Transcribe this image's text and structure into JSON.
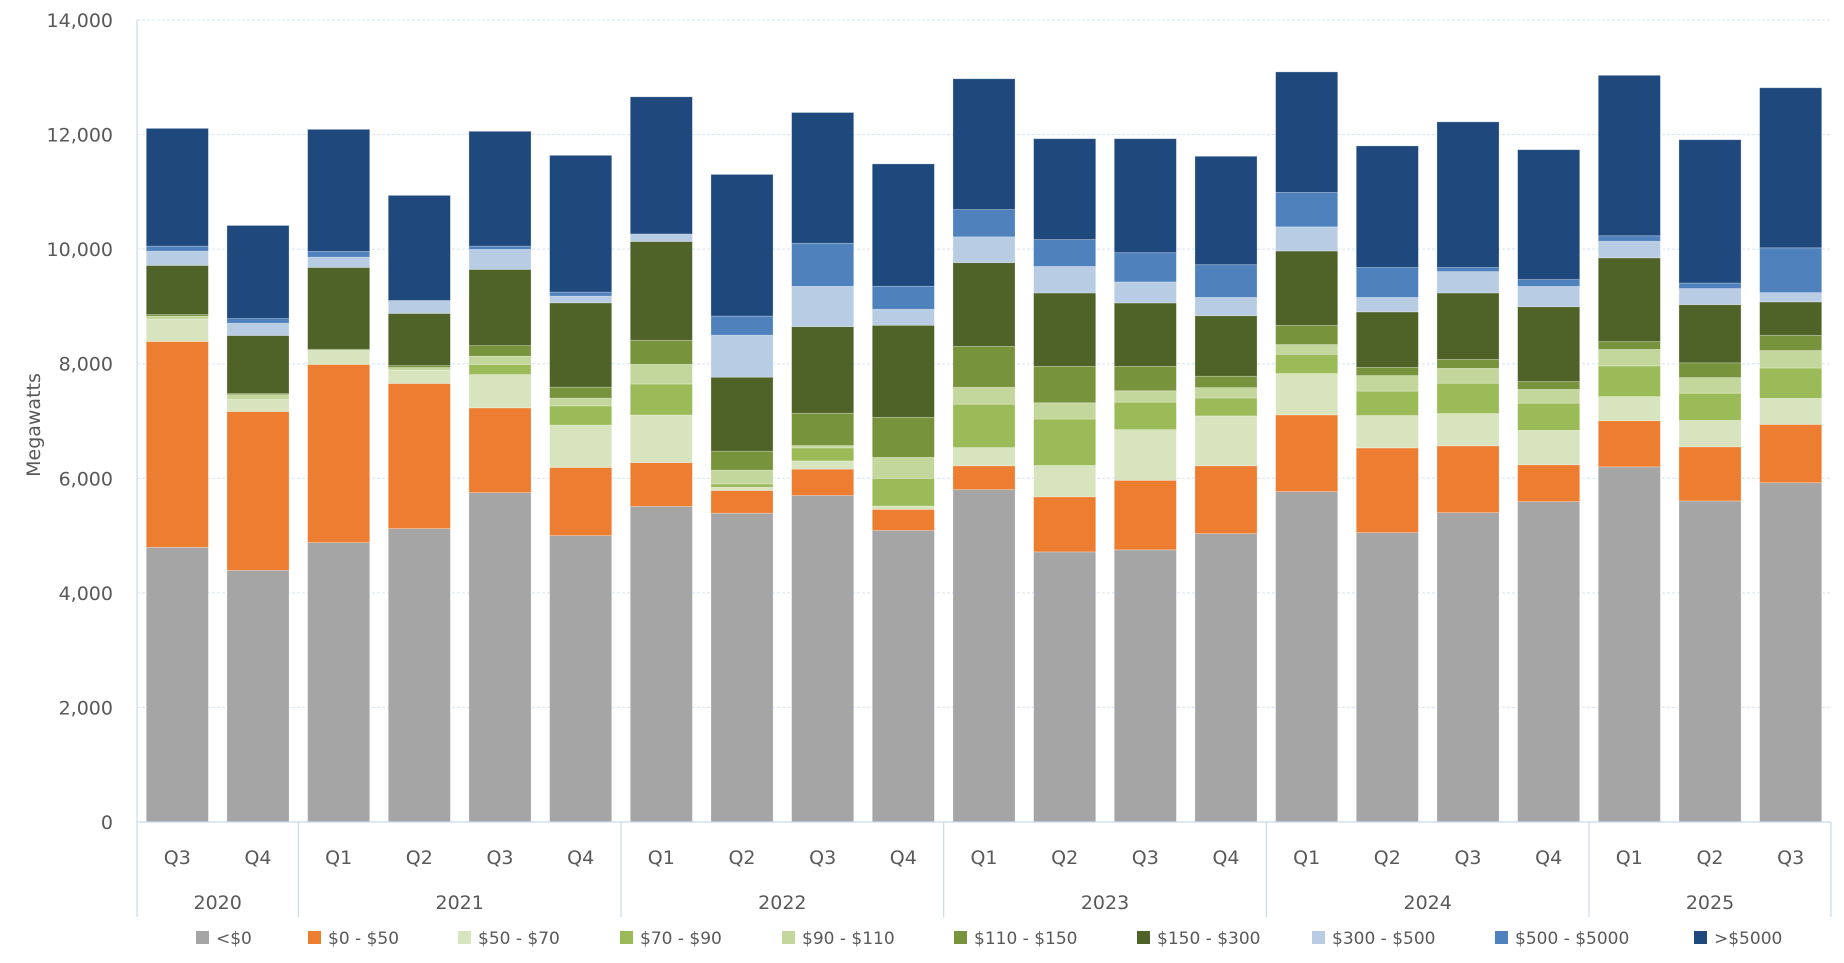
{
  "chart_data": {
    "type": "bar",
    "stacked": true,
    "title": "",
    "xlabel": "",
    "ylabel": "Megawatts",
    "ylim": [
      0,
      14000
    ],
    "yticks": [
      0,
      2000,
      4000,
      6000,
      8000,
      10000,
      12000,
      14000
    ],
    "ytick_labels": [
      "0",
      "2,000",
      "4,000",
      "6,000",
      "8,000",
      "10,000",
      "12,000",
      "14,000"
    ],
    "grid": true,
    "legend_position": "bottom",
    "categories": [
      "Q3",
      "Q4",
      "Q1",
      "Q2",
      "Q3",
      "Q4",
      "Q1",
      "Q2",
      "Q3",
      "Q4",
      "Q1",
      "Q2",
      "Q3",
      "Q4",
      "Q1",
      "Q2",
      "Q3",
      "Q4",
      "Q1",
      "Q2",
      "Q3"
    ],
    "category_groups": [
      {
        "label": "2020",
        "count": 2
      },
      {
        "label": "2021",
        "count": 4
      },
      {
        "label": "2022",
        "count": 4
      },
      {
        "label": "2023",
        "count": 4
      },
      {
        "label": "2024",
        "count": 4
      },
      {
        "label": "2025",
        "count": 3
      }
    ],
    "series": [
      {
        "name": "<$0",
        "color": "#A5A5A5",
        "values": [
          4795,
          4393,
          4877,
          5121,
          5750,
          5000,
          5510,
          5390,
          5700,
          5090,
          5803,
          4715,
          4751,
          5034,
          5767,
          5052,
          5400,
          5593,
          6200,
          5605,
          5923
        ]
      },
      {
        "name": "$0 - $50",
        "color": "#ED7D31",
        "values": [
          3592,
          2772,
          3109,
          2533,
          1479,
          1188,
          763,
          396,
          460,
          367,
          415,
          962,
          1214,
          1184,
          1340,
          1478,
          1167,
          643,
          805,
          944,
          1016
        ]
      },
      {
        "name": "$50 - $70",
        "color": "#D7E4BD",
        "values": [
          390,
          209,
          250,
          233,
          582,
          739,
          832,
          58,
          143,
          58,
          318,
          547,
          884,
          871,
          722,
          565,
          564,
          601,
          421,
          462,
          457
        ]
      },
      {
        "name": "$70 - $90",
        "color": "#9BBB59",
        "values": [
          0,
          0,
          0,
          0,
          175,
          337,
          541,
          58,
          228,
          484,
          758,
          811,
          481,
          313,
          336,
          427,
          529,
          475,
          535,
          475,
          529
        ]
      },
      {
        "name": "$90 - $110",
        "color": "#C3D69B",
        "values": [
          53,
          85,
          0,
          47,
          145,
          134,
          344,
          239,
          40,
          366,
          294,
          283,
          198,
          180,
          169,
          271,
          259,
          240,
          289,
          271,
          306
        ]
      },
      {
        "name": "$110 - $150",
        "color": "#77933C",
        "values": [
          29,
          20,
          17,
          35,
          187,
          193,
          419,
          332,
          564,
          699,
          716,
          637,
          427,
          199,
          336,
          144,
          156,
          138,
          138,
          258,
          265
        ]
      },
      {
        "name": "$150 - $300",
        "color": "#4F6228",
        "values": [
          856,
          1013,
          1427,
          908,
          1327,
          1472,
          1724,
          1292,
          1512,
          1607,
          1460,
          1280,
          1106,
          1057,
          1298,
          968,
          1160,
          1305,
          1460,
          1016,
          583
        ]
      },
      {
        "name": "$300 - $500",
        "color": "#B8CCE4",
        "values": [
          250,
          215,
          180,
          227,
          350,
          117,
          122,
          734,
          704,
          279,
          451,
          463,
          366,
          319,
          421,
          252,
          373,
          354,
          289,
          282,
          162
        ]
      },
      {
        "name": "$500 - $5000",
        "color": "#4F81BD",
        "values": [
          87,
          82,
          100,
          0,
          57,
          70,
          10,
          332,
          751,
          402,
          475,
          469,
          511,
          571,
          601,
          523,
          72,
          121,
          96,
          96,
          782
        ]
      },
      {
        "name": ">$5000",
        "color": "#1F497D",
        "values": [
          2056,
          1624,
          2131,
          1834,
          2005,
          2387,
          2394,
          2473,
          2283,
          2136,
          2284,
          1761,
          1990,
          1893,
          2104,
          2122,
          2542,
          2266,
          2801,
          2501,
          2794
        ]
      }
    ]
  }
}
